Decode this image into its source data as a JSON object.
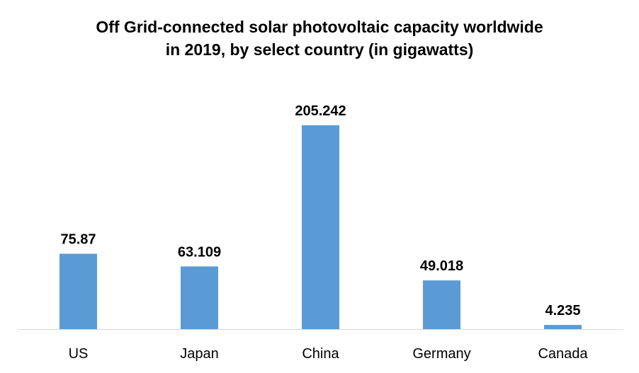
{
  "chart_data": {
    "type": "bar",
    "title_lines": [
      "Off Grid-connected solar photovoltaic capacity worldwide",
      "in 2019, by select country (in gigawatts)"
    ],
    "categories": [
      "US",
      "Japan",
      "China",
      "Germany",
      "Canada"
    ],
    "values": [
      75.87,
      63.109,
      205.242,
      49.018,
      4.235
    ],
    "value_labels": [
      "75.87",
      "63.109",
      "205.242",
      "49.018",
      "4.235"
    ],
    "xlabel": "",
    "ylabel": "",
    "ylim": [
      0,
      205.242
    ],
    "grid": false,
    "legend": "none",
    "bar_color": "#5B9BD5",
    "axis_color": "#D9D9D9"
  }
}
